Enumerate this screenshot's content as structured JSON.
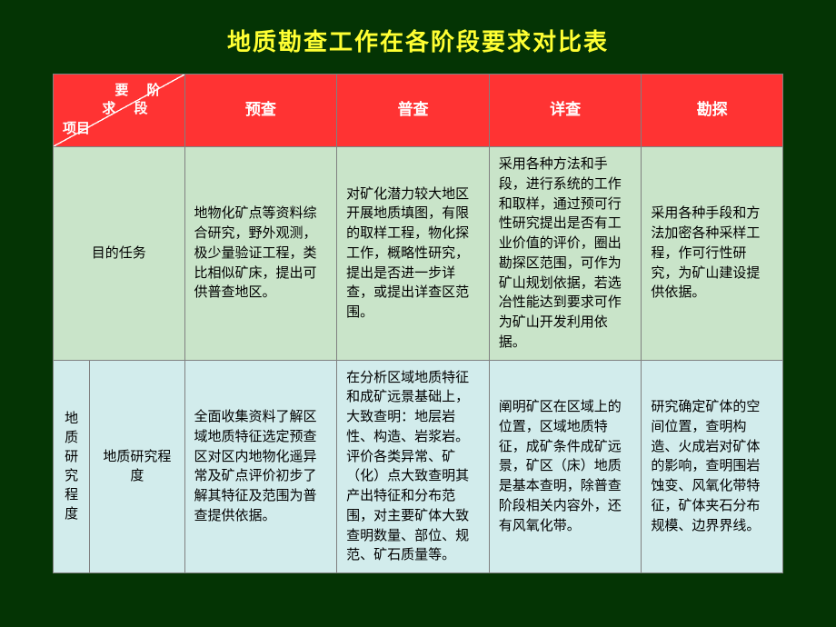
{
  "title": "地质勘查工作在各阶段要求对比表",
  "colors": {
    "page_bg": "#043404",
    "title_color": "#ffff33",
    "header_bg": "#ff3333",
    "header_text": "#ffffff",
    "row_green": "#c9e4c9",
    "row_cyan": "#d2ecec",
    "border": "#808080"
  },
  "corner": {
    "top1": "要 阶",
    "top2": "求 段",
    "bottom": "项目"
  },
  "stages": [
    "预查",
    "普查",
    "详查",
    "勘探"
  ],
  "row1": {
    "label": "目的任务",
    "cells": [
      "地物化矿点等资料综合研究，野外观测，极少量验证工程，类比相似矿床，提出可供普查地区。",
      "对矿化潜力较大地区开展地质填图，有限的取样工程，物化探工作，概略性研究，提出是否进一步详查，或提出详查区范围。",
      "采用各种方法和手段，进行系统的工作和取样，通过预可行性研究提出是否有工业价值的评价，圈出勘探区范围，可作为矿山规划依据，若选冶性能达到要求可作为矿山开发利用依据。",
      "采用各种手段和方法加密各种采样工程，作可行性研究，为矿山建设提供依据。"
    ]
  },
  "row2": {
    "group_label_vertical": "地质研究程度",
    "sub_label": "地质研究程度",
    "cells": [
      "全面收集资料了解区域地质特征选定预查区对区内地物化遥异常及矿点评价初步了解其特征及范围为普查提供依据。",
      "在分析区域地质特征和成矿远景基础上，大致查明：地层岩性、构造、岩浆岩。评价各类异常、矿（化）点大致查明其产出特征和分布范围，对主要矿体大致查明数量、部位、规范、矿石质量等。",
      "阐明矿区在区域上的位置，区域地质特征，成矿条件成矿远景，矿区（床）地质是基本查明，除普查阶段相关内容外，还有风氧化带。",
      "研究确定矿体的空间位置，查明构造、火成岩对矿体的影响，查明围岩蚀变、风氧化带特征，矿体夹石分布规模、边界界线。"
    ]
  },
  "typography": {
    "title_fontsize": 26,
    "header_fontsize": 17,
    "cell_fontsize": 15,
    "line_height": 1.45
  }
}
